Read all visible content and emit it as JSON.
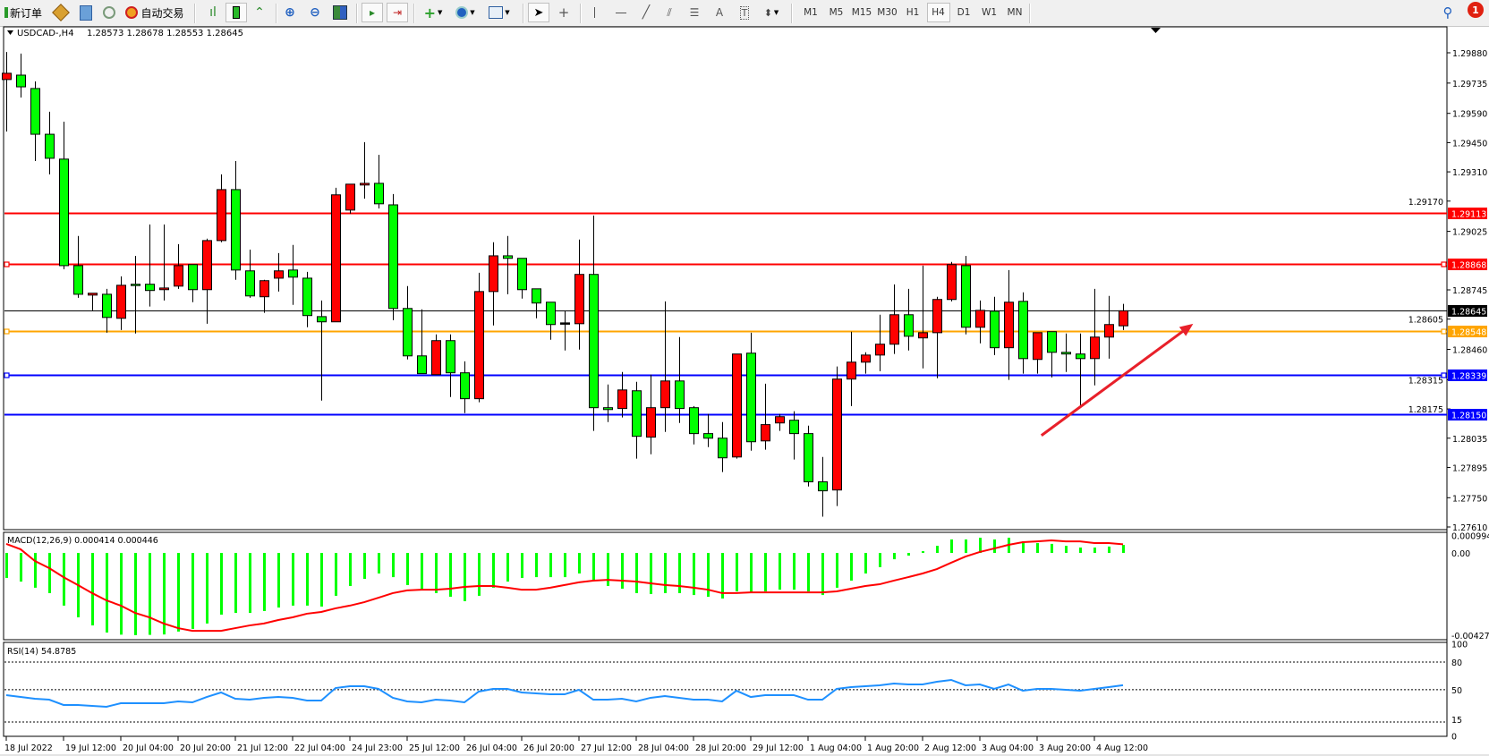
{
  "toolbar": {
    "new_order_label": "新订单",
    "auto_trading_label": "自动交易",
    "icons": [
      "new-order-icon",
      "market-watch-icon",
      "navigator-icon",
      "data-window-icon",
      "signals-icon",
      "auto-trading-icon",
      "bar-chart-icon",
      "candlestick-icon",
      "line-chart-icon",
      "zoom-in-icon",
      "zoom-out-icon",
      "tile-windows-icon",
      "autoscroll-icon",
      "chart-shift-icon",
      "indicators-icon",
      "periods-icon",
      "templates-icon",
      "cursor-icon",
      "crosshair-icon",
      "vertical-line-icon",
      "horizontal-line-icon",
      "trendline-icon",
      "equidistant-channel-icon",
      "fibonacci-icon",
      "text-icon",
      "text-label-icon",
      "arrows-icon",
      "search-icon",
      "notifications-icon"
    ],
    "timeframes": [
      "M1",
      "M5",
      "M15",
      "M30",
      "H1",
      "H4",
      "D1",
      "W1",
      "MN"
    ],
    "active_timeframe": "H4",
    "notification_count": "1"
  },
  "chart_header": {
    "symbol": "USDCAD-,H4",
    "ohlc_text": "1.28573 1.28678 1.28553 1.28645"
  },
  "chart_data": [
    {
      "type": "candlestick",
      "symbol": "USDCAD-",
      "timeframe": "H4",
      "ylim": [
        1.2761,
        1.2988
      ],
      "price_ticks": [
        "1.29880",
        "1.29735",
        "1.29590",
        "1.29450",
        "1.29310",
        "1.29170",
        "1.29025",
        "1.28745",
        "1.28605",
        "1.28460",
        "1.28315",
        "1.28175",
        "1.28035",
        "1.27895",
        "1.27750",
        "1.27610"
      ],
      "time_labels": [
        "18 Jul 2022",
        "19 Jul 12:00",
        "20 Jul 04:00",
        "20 Jul 20:00",
        "21 Jul 12:00",
        "22 Jul 04:00",
        "24 Jul 23:00",
        "25 Jul 12:00",
        "26 Jul 04:00",
        "26 Jul 20:00",
        "27 Jul 12:00",
        "28 Jul 04:00",
        "28 Jul 20:00",
        "29 Jul 12:00",
        "1 Aug 04:00",
        "1 Aug 20:00",
        "2 Aug 12:00",
        "3 Aug 04:00",
        "3 Aug 20:00",
        "4 Aug 12:00"
      ],
      "colors": {
        "bull": "#ff0000",
        "bear": "#00ff00",
        "outline": "#000000"
      },
      "ohlc_fields": [
        "open",
        "high",
        "low",
        "close"
      ],
      "candles": [
        [
          1.29752,
          1.29884,
          1.29503,
          1.29782
        ],
        [
          1.29773,
          1.29876,
          1.29666,
          1.29717
        ],
        [
          1.29709,
          1.29743,
          1.29362,
          1.2949
        ],
        [
          1.2949,
          1.29598,
          1.29298,
          1.29375
        ],
        [
          1.29371,
          1.2955,
          1.28844,
          1.28861
        ],
        [
          1.28861,
          1.29003,
          1.28707,
          1.28724
        ],
        [
          1.2872,
          1.28729,
          1.28647,
          1.28729
        ],
        [
          1.28724,
          1.2875,
          1.2854,
          1.28613
        ],
        [
          1.28609,
          1.2881,
          1.28553,
          1.28767
        ],
        [
          1.28772,
          1.28908,
          1.28536,
          1.28771
        ],
        [
          1.28772,
          1.29058,
          1.28665,
          1.28742
        ],
        [
          1.28746,
          1.29058,
          1.28694,
          1.28754
        ],
        [
          1.28763,
          1.28964,
          1.2875,
          1.28861
        ],
        [
          1.28866,
          1.28866,
          1.28686,
          1.28746
        ],
        [
          1.28746,
          1.2899,
          1.28583,
          1.28981
        ],
        [
          1.28981,
          1.29298,
          1.28973,
          1.29225
        ],
        [
          1.29225,
          1.29362,
          1.28793,
          1.2884
        ],
        [
          1.28836,
          1.28938,
          1.28707,
          1.28716
        ],
        [
          1.28712,
          1.28793,
          1.28635,
          1.28789
        ],
        [
          1.28801,
          1.28921,
          1.28737,
          1.28836
        ],
        [
          1.2884,
          1.2896,
          1.28673,
          1.28806
        ],
        [
          1.28801,
          1.28831,
          1.28566,
          1.28622
        ],
        [
          1.28617,
          1.28694,
          1.28215,
          1.28592
        ],
        [
          1.28592,
          1.29234,
          1.28592,
          1.292
        ],
        [
          1.29127,
          1.29251,
          1.2911,
          1.29251
        ],
        [
          1.29247,
          1.29452,
          1.29182,
          1.29255
        ],
        [
          1.29255,
          1.29392,
          1.29135,
          1.29157
        ],
        [
          1.29152,
          1.29204,
          1.286,
          1.28656
        ],
        [
          1.28656,
          1.28763,
          1.28412,
          1.28429
        ],
        [
          1.28429,
          1.28652,
          1.28344,
          1.28344
        ],
        [
          1.28339,
          1.28532,
          1.28339,
          1.28502
        ],
        [
          1.28502,
          1.28532,
          1.28232,
          1.28348
        ],
        [
          1.28348,
          1.28403,
          1.28155,
          1.28224
        ],
        [
          1.28224,
          1.28827,
          1.28207,
          1.28737
        ],
        [
          1.28737,
          1.28973,
          1.28575,
          1.28908
        ],
        [
          1.28908,
          1.29003,
          1.28724,
          1.28896
        ],
        [
          1.28896,
          1.28896,
          1.28703,
          1.28746
        ],
        [
          1.2875,
          1.2875,
          1.28609,
          1.28682
        ],
        [
          1.28686,
          1.28686,
          1.28506,
          1.28579
        ],
        [
          1.28587,
          1.28643,
          1.28455,
          1.28587
        ],
        [
          1.28583,
          1.28986,
          1.28459,
          1.28819
        ],
        [
          1.28819,
          1.29101,
          1.2807,
          1.28181
        ],
        [
          1.28181,
          1.28292,
          1.28112,
          1.28172
        ],
        [
          1.28177,
          1.28352,
          1.28134,
          1.28266
        ],
        [
          1.28262,
          1.28305,
          1.27937,
          1.28044
        ],
        [
          1.2804,
          1.28339,
          1.27958,
          1.28181
        ],
        [
          1.28181,
          1.2869,
          1.28065,
          1.28309
        ],
        [
          1.28309,
          1.28519,
          1.28108,
          1.28177
        ],
        [
          1.28181,
          1.28189,
          1.28005,
          1.28057
        ],
        [
          1.28057,
          1.28151,
          1.27992,
          1.28035
        ],
        [
          1.28035,
          1.28112,
          1.27873,
          1.27941
        ],
        [
          1.27945,
          1.28438,
          1.27937,
          1.28438
        ],
        [
          1.28442,
          1.2854,
          1.27975,
          1.28018
        ],
        [
          1.28022,
          1.28296,
          1.2798,
          1.281
        ],
        [
          1.28108,
          1.28151,
          1.2807,
          1.28138
        ],
        [
          1.28121,
          1.28164,
          1.27933,
          1.28057
        ],
        [
          1.28057,
          1.28095,
          1.27804,
          1.27826
        ],
        [
          1.27826,
          1.27945,
          1.27659,
          1.27783
        ],
        [
          1.27787,
          1.28378,
          1.2771,
          1.28318
        ],
        [
          1.28318,
          1.28545,
          1.28189,
          1.28399
        ],
        [
          1.28399,
          1.28446,
          1.28344,
          1.28433
        ],
        [
          1.28433,
          1.28626,
          1.28356,
          1.28485
        ],
        [
          1.28485,
          1.28771,
          1.28438,
          1.28626
        ],
        [
          1.28626,
          1.2875,
          1.28455,
          1.28523
        ],
        [
          1.28515,
          1.28861,
          1.28369,
          1.2854
        ],
        [
          1.2854,
          1.28712,
          1.28322,
          1.28699
        ],
        [
          1.28699,
          1.28879,
          1.2869,
          1.28866
        ],
        [
          1.28861,
          1.28908,
          1.28532,
          1.28566
        ],
        [
          1.28566,
          1.28694,
          1.28489,
          1.28647
        ],
        [
          1.28643,
          1.28712,
          1.28433,
          1.28468
        ],
        [
          1.28468,
          1.2884,
          1.28314,
          1.28686
        ],
        [
          1.2869,
          1.28733,
          1.28344,
          1.28416
        ],
        [
          1.28412,
          1.2854,
          1.28344,
          1.2854
        ],
        [
          1.28545,
          1.28545,
          1.28326,
          1.28446
        ],
        [
          1.28446,
          1.28536,
          1.28352,
          1.28438
        ],
        [
          1.28438,
          1.28536,
          1.28189,
          1.28416
        ],
        [
          1.28416,
          1.2875,
          1.28288,
          1.28519
        ],
        [
          1.28519,
          1.28716,
          1.28416,
          1.28579
        ],
        [
          1.28573,
          1.28678,
          1.28553,
          1.28645
        ]
      ],
      "horizontal_lines": [
        {
          "price": "1.29113",
          "color": "#ff0000",
          "marker": false
        },
        {
          "price": "1.28868",
          "color": "#ff0000",
          "marker": true
        },
        {
          "price": "1.28645",
          "color": "#000000",
          "marker": false
        },
        {
          "price": "1.28548",
          "color": "#ffa500",
          "marker": true
        },
        {
          "price": "1.28339",
          "color": "#0000ff",
          "marker": true
        },
        {
          "price": "1.28150",
          "color": "#0000ff",
          "marker": false
        }
      ],
      "arrow": {
        "color": "#e8202a",
        "from": {
          "bar": 72.3,
          "price": 1.28048
        },
        "to": {
          "bar": 82.9,
          "price": 1.28583
        }
      }
    },
    {
      "type": "bar+line",
      "label": "MACD(12,26,9) 0.000414 0.000446",
      "ylim": [
        -0.004274,
        0.000994
      ],
      "axis_labels": [
        "0.000994",
        "0.00",
        "-0.004274"
      ],
      "histogram_color": "#00ff00",
      "signal_color": "#ff0000",
      "macd": [
        -0.0013,
        -0.00149,
        -0.00181,
        -0.00209,
        -0.00274,
        -0.00335,
        -0.00377,
        -0.00414,
        -0.00425,
        -0.004274,
        -0.00426,
        -0.00424,
        -0.00409,
        -0.00395,
        -0.00367,
        -0.00321,
        -0.00312,
        -0.00312,
        -0.00302,
        -0.00284,
        -0.00274,
        -0.00274,
        -0.00279,
        -0.00223,
        -0.00172,
        -0.00135,
        -0.00107,
        -0.00126,
        -0.00167,
        -0.00195,
        -0.00209,
        -0.00228,
        -0.00251,
        -0.00223,
        -0.00181,
        -0.00149,
        -0.0013,
        -0.00126,
        -0.00126,
        -0.00126,
        -0.00107,
        -0.00144,
        -0.00172,
        -0.00186,
        -0.00209,
        -0.00214,
        -0.00209,
        -0.00209,
        -0.00219,
        -0.00228,
        -0.00237,
        -0.002,
        -0.00205,
        -0.002,
        -0.00191,
        -0.00191,
        -0.002,
        -0.00219,
        -0.00181,
        -0.00144,
        -0.00107,
        -0.00074,
        -0.00033,
        -0.00014,
        9e-05,
        0.00037,
        0.0007,
        0.0007,
        0.00079,
        0.0007,
        0.00079,
        0.0006,
        0.00051,
        0.00047,
        0.00037,
        0.00028,
        0.00028,
        0.00033,
        0.000414
      ],
      "signal": [
        0.00047,
        0.00019,
        -0.00042,
        -0.00079,
        -0.00126,
        -0.00167,
        -0.00209,
        -0.00247,
        -0.00274,
        -0.00312,
        -0.00335,
        -0.00367,
        -0.00391,
        -0.00405,
        -0.00405,
        -0.00405,
        -0.00391,
        -0.00377,
        -0.00367,
        -0.00349,
        -0.00335,
        -0.00316,
        -0.00307,
        -0.00288,
        -0.00274,
        -0.00256,
        -0.00233,
        -0.00209,
        -0.00195,
        -0.00191,
        -0.00191,
        -0.00186,
        -0.00177,
        -0.00172,
        -0.00172,
        -0.00181,
        -0.00191,
        -0.00191,
        -0.00181,
        -0.00167,
        -0.00153,
        -0.00144,
        -0.0014,
        -0.00144,
        -0.00149,
        -0.00158,
        -0.00167,
        -0.00172,
        -0.00181,
        -0.00191,
        -0.00209,
        -0.00209,
        -0.00205,
        -0.00205,
        -0.00205,
        -0.00205,
        -0.00205,
        -0.00205,
        -0.002,
        -0.00186,
        -0.00172,
        -0.00163,
        -0.00144,
        -0.00126,
        -0.00107,
        -0.00084,
        -0.00051,
        -0.00019,
        5e-05,
        0.00023,
        0.00042,
        0.00056,
        0.0006,
        0.00065,
        0.0006,
        0.0006,
        0.00051,
        0.00051,
        0.000446
      ]
    },
    {
      "type": "line",
      "label": "RSI(14) 54.8785",
      "ylim": [
        0,
        100
      ],
      "levels": [
        80,
        50,
        15
      ],
      "axis_labels": [
        "100",
        "80",
        "50",
        "15",
        "0"
      ],
      "line_color": "#1e90ff",
      "values": [
        44.1,
        42.1,
        40.2,
        39.2,
        33.4,
        33.4,
        32.4,
        31.5,
        35.3,
        35.3,
        35.3,
        35.3,
        37.3,
        36.3,
        42.1,
        47.0,
        40.2,
        39.2,
        41.2,
        42.1,
        41.2,
        38.3,
        38.3,
        51.8,
        53.8,
        53.8,
        50.9,
        41.2,
        37.3,
        36.3,
        39.2,
        38.3,
        36.3,
        48.0,
        50.9,
        50.9,
        47.0,
        46.0,
        45.0,
        45.0,
        49.9,
        39.2,
        39.2,
        40.2,
        37.3,
        41.2,
        43.1,
        41.2,
        39.2,
        39.2,
        37.3,
        48.9,
        42.1,
        44.1,
        44.1,
        44.1,
        39.2,
        39.2,
        50.9,
        52.8,
        53.8,
        54.8,
        56.7,
        55.7,
        55.7,
        58.6,
        60.6,
        54.8,
        55.7,
        50.9,
        55.7,
        48.9,
        50.9,
        50.9,
        49.9,
        48.9,
        50.9,
        52.8,
        54.8785
      ]
    }
  ]
}
